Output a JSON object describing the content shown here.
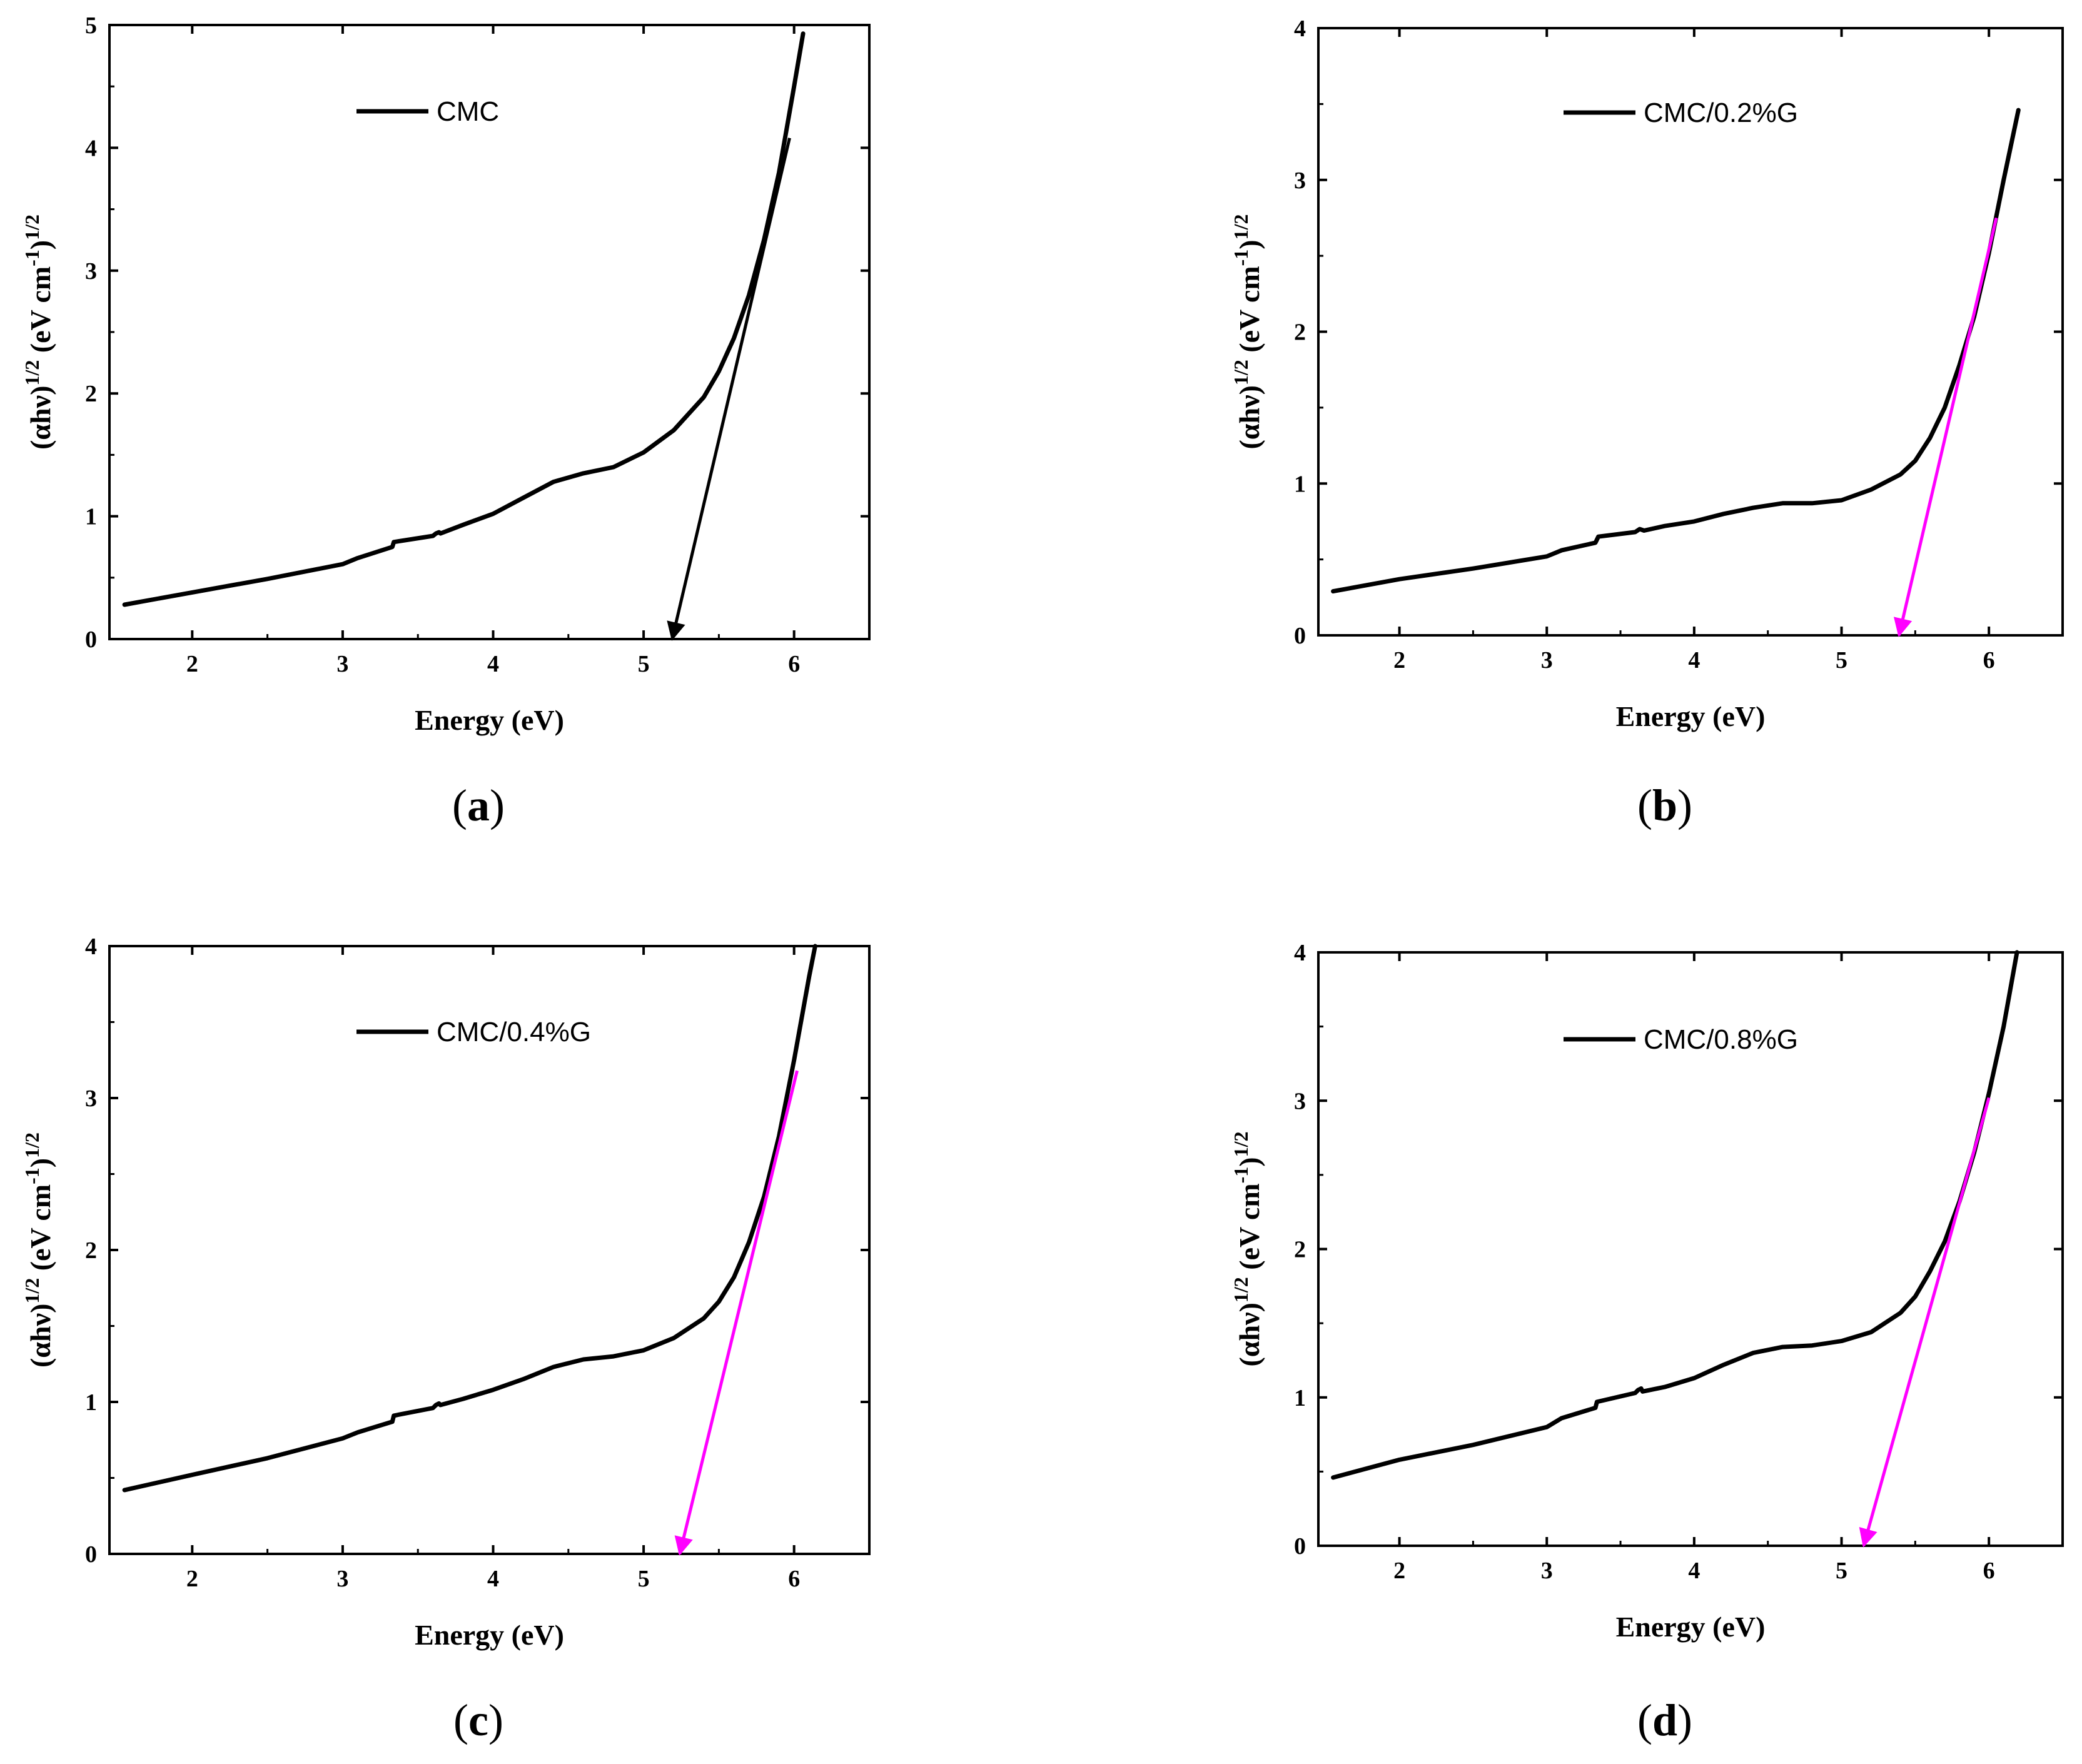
{
  "figure": {
    "panel_count": 4
  },
  "chart_data": [
    {
      "type": "line",
      "panel": "(a)",
      "panel_letter": "a",
      "xlabel": "Energy (eV)",
      "ylabel": {
        "prefix": "(αhν)",
        "exp1": "1/2",
        "mid": " (eV cm",
        "exp2": "-1",
        "close": ")",
        "exp3": "1/2"
      },
      "xlim": [
        1.45,
        6.5
      ],
      "ylim": [
        0,
        5
      ],
      "xticks": [
        2,
        3,
        4,
        5,
        6
      ],
      "yticks": [
        0,
        1,
        2,
        3,
        4,
        5
      ],
      "legend": "CMC",
      "arrow_color": "#000000",
      "series": [
        {
          "name": "CMC",
          "x": [
            1.55,
            2.0,
            2.5,
            3.0,
            3.1,
            3.33,
            3.34,
            3.6,
            3.62,
            3.64,
            3.65,
            3.8,
            4.0,
            4.2,
            4.4,
            4.6,
            4.8,
            5.0,
            5.2,
            5.4,
            5.5,
            5.6,
            5.7,
            5.8,
            5.9,
            6.0,
            6.06
          ],
          "y": [
            0.28,
            0.38,
            0.49,
            0.61,
            0.66,
            0.75,
            0.79,
            0.84,
            0.86,
            0.87,
            0.86,
            0.93,
            1.02,
            1.15,
            1.28,
            1.35,
            1.4,
            1.52,
            1.7,
            1.97,
            2.18,
            2.45,
            2.8,
            3.25,
            3.8,
            4.5,
            4.93
          ]
        }
      ],
      "tangent": {
        "x1": 5.97,
        "y1": 4.08,
        "x2": 5.19,
        "y2": 0.0
      }
    },
    {
      "type": "line",
      "panel": "(b)",
      "panel_letter": "b",
      "xlabel": "Energy (eV)",
      "ylabel": {
        "prefix": "(αhν)",
        "exp1": "1/2",
        "mid": " (eV cm",
        "exp2": "-1",
        "close": ")",
        "exp3": "1/2"
      },
      "xlim": [
        1.45,
        6.5
      ],
      "ylim": [
        0,
        4
      ],
      "xticks": [
        2,
        3,
        4,
        5,
        6
      ],
      "yticks": [
        0,
        1,
        2,
        3,
        4
      ],
      "legend": "CMC/0.2%G",
      "arrow_color": "#ff00ff",
      "series": [
        {
          "name": "CMC/0.2%G",
          "x": [
            1.55,
            2.0,
            2.5,
            3.0,
            3.1,
            3.33,
            3.35,
            3.6,
            3.63,
            3.66,
            3.8,
            4.0,
            4.2,
            4.4,
            4.6,
            4.8,
            5.0,
            5.2,
            5.4,
            5.5,
            5.6,
            5.7,
            5.8,
            5.9,
            6.0,
            6.1,
            6.2
          ],
          "y": [
            0.29,
            0.37,
            0.44,
            0.52,
            0.56,
            0.61,
            0.65,
            0.68,
            0.7,
            0.69,
            0.72,
            0.75,
            0.8,
            0.84,
            0.87,
            0.87,
            0.89,
            0.96,
            1.06,
            1.15,
            1.3,
            1.5,
            1.78,
            2.1,
            2.52,
            3.0,
            3.46
          ]
        }
      ],
      "tangent": {
        "x1": 6.05,
        "y1": 2.75,
        "x2": 5.39,
        "y2": 0.0
      }
    },
    {
      "type": "line",
      "panel": "(c)",
      "panel_letter": "c",
      "xlabel": "Energy (eV)",
      "ylabel": {
        "prefix": "(αhν)",
        "exp1": "1/2",
        "mid": " (eV cm",
        "exp2": "-1",
        "close": ")",
        "exp3": "1/2"
      },
      "xlim": [
        1.45,
        6.5
      ],
      "ylim": [
        0,
        4
      ],
      "xticks": [
        2,
        3,
        4,
        5,
        6
      ],
      "yticks": [
        0,
        1,
        2,
        3,
        4
      ],
      "legend": "CMC/0.4%G",
      "arrow_color": "#ff00ff",
      "series": [
        {
          "name": "CMC/0.4%G",
          "x": [
            1.55,
            2.0,
            2.5,
            3.0,
            3.1,
            3.33,
            3.34,
            3.6,
            3.62,
            3.64,
            3.65,
            3.8,
            4.0,
            4.2,
            4.4,
            4.6,
            4.8,
            5.0,
            5.2,
            5.4,
            5.5,
            5.6,
            5.7,
            5.8,
            5.9,
            6.0,
            6.1,
            6.14
          ],
          "y": [
            0.42,
            0.52,
            0.63,
            0.76,
            0.8,
            0.87,
            0.91,
            0.96,
            0.98,
            0.99,
            0.98,
            1.02,
            1.08,
            1.15,
            1.23,
            1.28,
            1.3,
            1.34,
            1.42,
            1.55,
            1.66,
            1.82,
            2.05,
            2.35,
            2.75,
            3.25,
            3.8,
            4.0
          ]
        }
      ],
      "tangent": {
        "x1": 6.02,
        "y1": 3.18,
        "x2": 5.24,
        "y2": 0.0
      }
    },
    {
      "type": "line",
      "panel": "(d)",
      "panel_letter": "d",
      "xlabel": "Energy (eV)",
      "ylabel": {
        "prefix": "(αhν)",
        "exp1": "1/2",
        "mid": " (eV cm",
        "exp2": "-1",
        "close": ")",
        "exp3": "1/2"
      },
      "xlim": [
        1.45,
        6.5
      ],
      "ylim": [
        0,
        4
      ],
      "xticks": [
        2,
        3,
        4,
        5,
        6
      ],
      "yticks": [
        0,
        1,
        2,
        3,
        4
      ],
      "legend": "CMC/0.8%G",
      "arrow_color": "#ff00ff",
      "series": [
        {
          "name": "CMC/0.8%G",
          "x": [
            1.55,
            2.0,
            2.5,
            3.0,
            3.1,
            3.33,
            3.34,
            3.6,
            3.62,
            3.64,
            3.65,
            3.8,
            4.0,
            4.2,
            4.4,
            4.6,
            4.8,
            5.0,
            5.2,
            5.4,
            5.5,
            5.6,
            5.7,
            5.8,
            5.9,
            6.0,
            6.1,
            6.19
          ],
          "y": [
            0.46,
            0.58,
            0.68,
            0.8,
            0.86,
            0.93,
            0.97,
            1.03,
            1.05,
            1.06,
            1.04,
            1.07,
            1.13,
            1.22,
            1.3,
            1.34,
            1.35,
            1.38,
            1.44,
            1.57,
            1.68,
            1.85,
            2.05,
            2.32,
            2.65,
            3.05,
            3.5,
            4.0
          ]
        }
      ],
      "tangent": {
        "x1": 6.0,
        "y1": 3.02,
        "x2": 5.15,
        "y2": 0.0
      }
    }
  ]
}
